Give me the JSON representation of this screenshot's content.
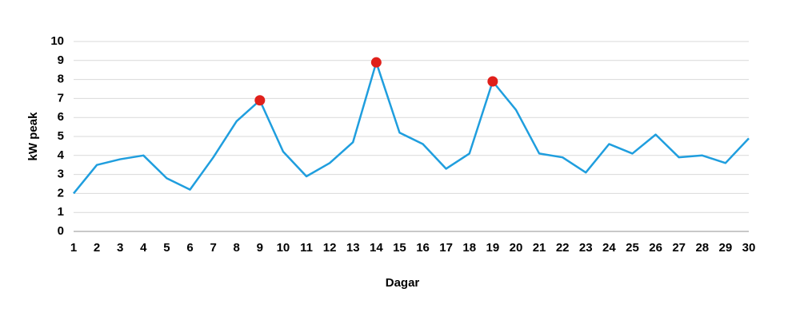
{
  "chart_data": {
    "type": "line",
    "x_label": "Dagar",
    "y_label": "kW peak",
    "x": [
      1,
      2,
      3,
      4,
      5,
      6,
      7,
      8,
      9,
      10,
      11,
      12,
      13,
      14,
      15,
      16,
      17,
      18,
      19,
      20,
      21,
      22,
      23,
      24,
      25,
      26,
      27,
      28,
      29,
      30
    ],
    "values": [
      2.0,
      3.5,
      3.8,
      4.0,
      2.8,
      2.2,
      3.9,
      5.8,
      6.9,
      4.2,
      2.9,
      3.6,
      4.7,
      8.9,
      5.2,
      4.6,
      3.3,
      4.1,
      7.9,
      6.4,
      4.1,
      3.9,
      3.1,
      4.6,
      4.1,
      5.1,
      3.9,
      4.0,
      3.6,
      4.9
    ],
    "color": "#1f9ede",
    "highlight_x": [
      9,
      14,
      19
    ],
    "highlight_color": "#e0201b",
    "xlim": [
      1,
      30
    ],
    "xticks": [
      1,
      2,
      3,
      4,
      5,
      6,
      7,
      8,
      9,
      10,
      11,
      12,
      13,
      14,
      15,
      16,
      17,
      18,
      19,
      20,
      21,
      22,
      23,
      24,
      25,
      26,
      27,
      28,
      29,
      30
    ],
    "ylim": [
      0,
      10
    ],
    "yticks": [
      0,
      1,
      2,
      3,
      4,
      5,
      6,
      7,
      8,
      9,
      10
    ],
    "grid": true
  }
}
